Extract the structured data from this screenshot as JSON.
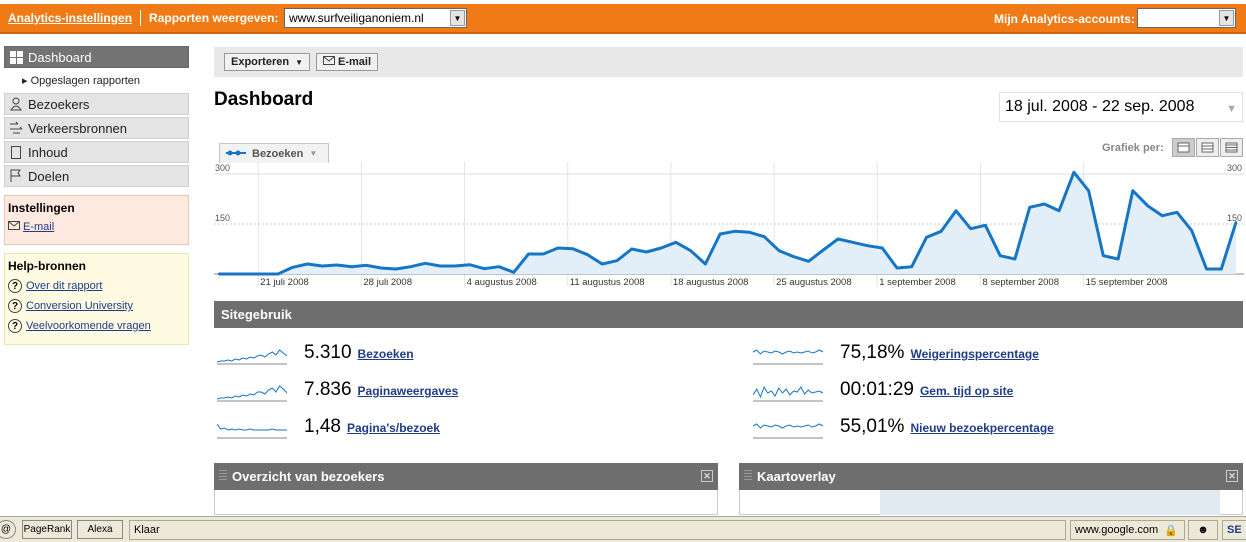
{
  "topbar": {
    "settings_link": "Analytics-instellingen",
    "reports_label": "Rapporten weergeven:",
    "site_value": "www.surfveiliganoniem.nl",
    "accounts_label": "Mijn Analytics-accounts:",
    "accounts_value": ""
  },
  "nav": {
    "items": [
      {
        "label": "Dashboard",
        "icon": "grid-icon",
        "active": true
      },
      {
        "label": "Bezoekers",
        "icon": "person-icon"
      },
      {
        "label": "Verkeersbronnen",
        "icon": "traffic-icon"
      },
      {
        "label": "Inhoud",
        "icon": "page-icon"
      },
      {
        "label": "Doelen",
        "icon": "flag-icon"
      }
    ],
    "saved_reports": "Opgeslagen rapporten"
  },
  "settings_box": {
    "title": "Instellingen",
    "email": "E-mail"
  },
  "help_box": {
    "title": "Help-bronnen",
    "links": [
      "Over dit rapport",
      "Conversion University",
      "Veelvoorkomende vragen"
    ]
  },
  "toolbar": {
    "export_label": "Exporteren",
    "email_label": "E-mail"
  },
  "page": {
    "title": "Dashboard",
    "date_range": "18 jul. 2008 - 22 sep. 2008"
  },
  "chart_tab": {
    "label": "Bezoeken"
  },
  "graph_per": "Grafiek per:",
  "chart_data": {
    "type": "area",
    "series": [
      {
        "name": "Bezoeken",
        "values": [
          0,
          0,
          0,
          0,
          0,
          20,
          30,
          24,
          27,
          22,
          26,
          18,
          15,
          22,
          32,
          24,
          24,
          28,
          16,
          22,
          5,
          60,
          60,
          78,
          76,
          58,
          30,
          40,
          75,
          66,
          78,
          95,
          70,
          30,
          120,
          128,
          125,
          112,
          70,
          52,
          38,
          72,
          105,
          95,
          85,
          78,
          18,
          22,
          110,
          128,
          190,
          136,
          146,
          55,
          45,
          200,
          210,
          190,
          305,
          250,
          55,
          45,
          250,
          205,
          175,
          185,
          130,
          15,
          15,
          155
        ]
      }
    ],
    "ylim": [
      0,
      300
    ],
    "yticks": [
      "300",
      "150"
    ],
    "xticks": [
      "21 juli 2008",
      "28 juli 2008",
      "4 augustus 2008",
      "11 augustus 2008",
      "18 augustus 2008",
      "25 augustus 2008",
      "1 september 2008",
      "8 september 2008",
      "15 september 2008"
    ],
    "color": "#1576c8"
  },
  "sitegebruik": {
    "title": "Sitegebruik",
    "metrics": [
      {
        "value": "5.310",
        "label": "Bezoeken"
      },
      {
        "value": "7.836",
        "label": "Paginaweergaves"
      },
      {
        "value": "1,48",
        "label": "Pagina's/bezoek"
      },
      {
        "value": "75,18%",
        "label": "Weigeringspercentage"
      },
      {
        "value": "00:01:29",
        "label": "Gem. tijd op site"
      },
      {
        "value": "55,01%",
        "label": "Nieuw bezoekpercentage"
      }
    ]
  },
  "panels": {
    "visitors": "Overzicht van bezoekers",
    "map": "Kaartoverlay"
  },
  "statusbar": {
    "pagerank": "PageRank",
    "alexa": "Alexa",
    "status": "Klaar",
    "zone": "www.google.com",
    "seo": "SE"
  }
}
